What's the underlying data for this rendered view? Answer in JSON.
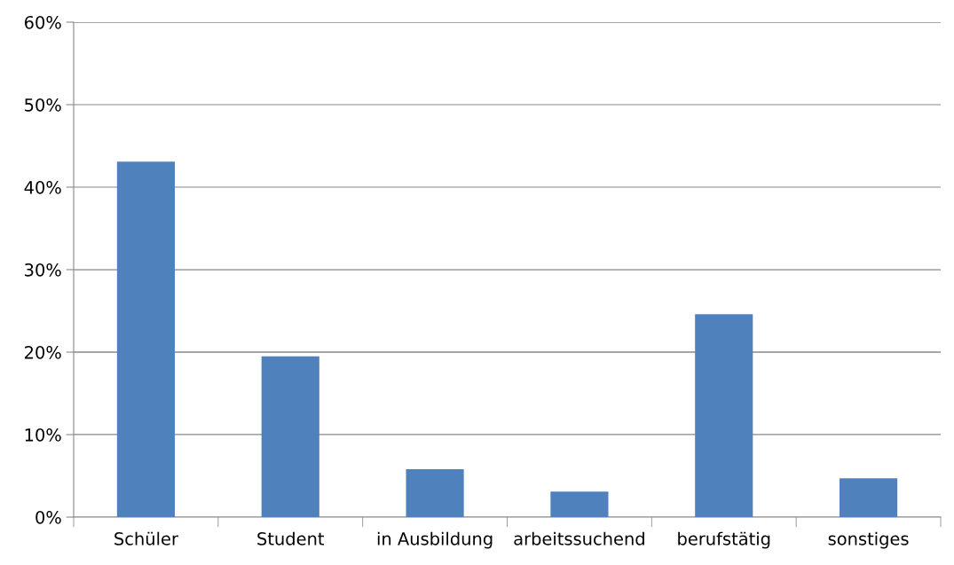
{
  "chart_data": {
    "type": "bar",
    "categories": [
      "Schüler",
      "Student",
      "in Ausbildung",
      "arbeitssuchend",
      "berufstätig",
      "sonstiges"
    ],
    "values": [
      43.1,
      19.5,
      5.8,
      3.1,
      24.6,
      4.7
    ],
    "color": "#4f81bd",
    "ylim": [
      0,
      60
    ],
    "yticks": [
      {
        "value": 0,
        "label": "0%"
      },
      {
        "value": 10,
        "label": "10%"
      },
      {
        "value": 20,
        "label": "20%"
      },
      {
        "value": 30,
        "label": "30%"
      },
      {
        "value": 40,
        "label": "40%"
      },
      {
        "value": 50,
        "label": "50%"
      },
      {
        "value": 60,
        "label": "60%"
      }
    ],
    "grid": "y",
    "legend": false
  }
}
